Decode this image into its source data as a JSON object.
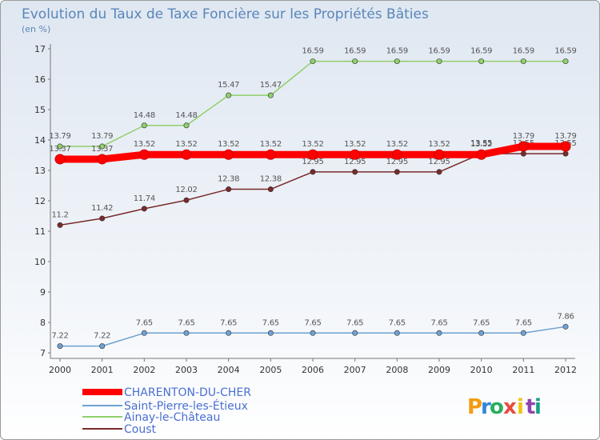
{
  "chart_data": {
    "type": "line",
    "title": "Evolution du Taux de Taxe Foncière sur les Propriétés Bâties",
    "subtitle": "(en %)",
    "x": [
      "2000",
      "2001",
      "2002",
      "2003",
      "2004",
      "2005",
      "2006",
      "2007",
      "2008",
      "2009",
      "2010",
      "2011",
      "2012"
    ],
    "ylim": [
      7,
      17
    ],
    "yticks": [
      "7",
      "8",
      "9",
      "10",
      "11",
      "12",
      "13",
      "14",
      "15",
      "16",
      "17"
    ],
    "grid": false,
    "legend_position": "bottom-left",
    "series": [
      {
        "name": "CHARENTON-DU-CHER",
        "color": "#ff0000",
        "values": [
          13.37,
          13.37,
          13.52,
          13.52,
          13.52,
          13.52,
          13.52,
          13.52,
          13.52,
          13.52,
          13.52,
          13.79,
          13.79
        ],
        "labels": [
          "13.37",
          "13.37",
          "13.52",
          "13.52",
          "13.52",
          "13.52",
          "13.52",
          "13.52",
          "13.52",
          "13.52",
          "13.52",
          "13.79",
          "13.79"
        ]
      },
      {
        "name": "Saint-Pierre-les-Étieux",
        "color": "#6fa1d0",
        "values": [
          7.22,
          7.22,
          7.65,
          7.65,
          7.65,
          7.65,
          7.65,
          7.65,
          7.65,
          7.65,
          7.65,
          7.65,
          7.86
        ],
        "labels": [
          "7.22",
          "7.22",
          "7.65",
          "7.65",
          "7.65",
          "7.65",
          "7.65",
          "7.65",
          "7.65",
          "7.65",
          "7.65",
          "7.65",
          "7.86"
        ]
      },
      {
        "name": "Ainay-le-Château",
        "color": "#8fd06a",
        "values": [
          13.79,
          13.79,
          14.48,
          14.48,
          15.47,
          15.47,
          16.59,
          16.59,
          16.59,
          16.59,
          16.59,
          16.59,
          16.59
        ],
        "labels": [
          "13.79",
          "13.79",
          "14.48",
          "14.48",
          "15.47",
          "15.47",
          "16.59",
          "16.59",
          "16.59",
          "16.59",
          "16.59",
          "16.59",
          "16.59"
        ]
      },
      {
        "name": "Coust",
        "color": "#7a2a2a",
        "values": [
          11.2,
          11.42,
          11.74,
          12.02,
          12.38,
          12.38,
          12.95,
          12.95,
          12.95,
          12.95,
          13.55,
          13.55,
          13.55
        ],
        "labels": [
          "11.2",
          "11.42",
          "11.74",
          "12.02",
          "12.38",
          "12.38",
          "12.95",
          "12.95",
          "12.95",
          "12.95",
          "13.55",
          "13.55",
          "13.55"
        ]
      }
    ]
  },
  "logo": {
    "letters": [
      "P",
      "r",
      "o",
      "x",
      "i",
      "t",
      "i"
    ],
    "colors": [
      "#f39c12",
      "#2e86de",
      "#27ae60",
      "#e74c3c",
      "#f1c40f",
      "#8e44ad",
      "#16a085"
    ]
  }
}
